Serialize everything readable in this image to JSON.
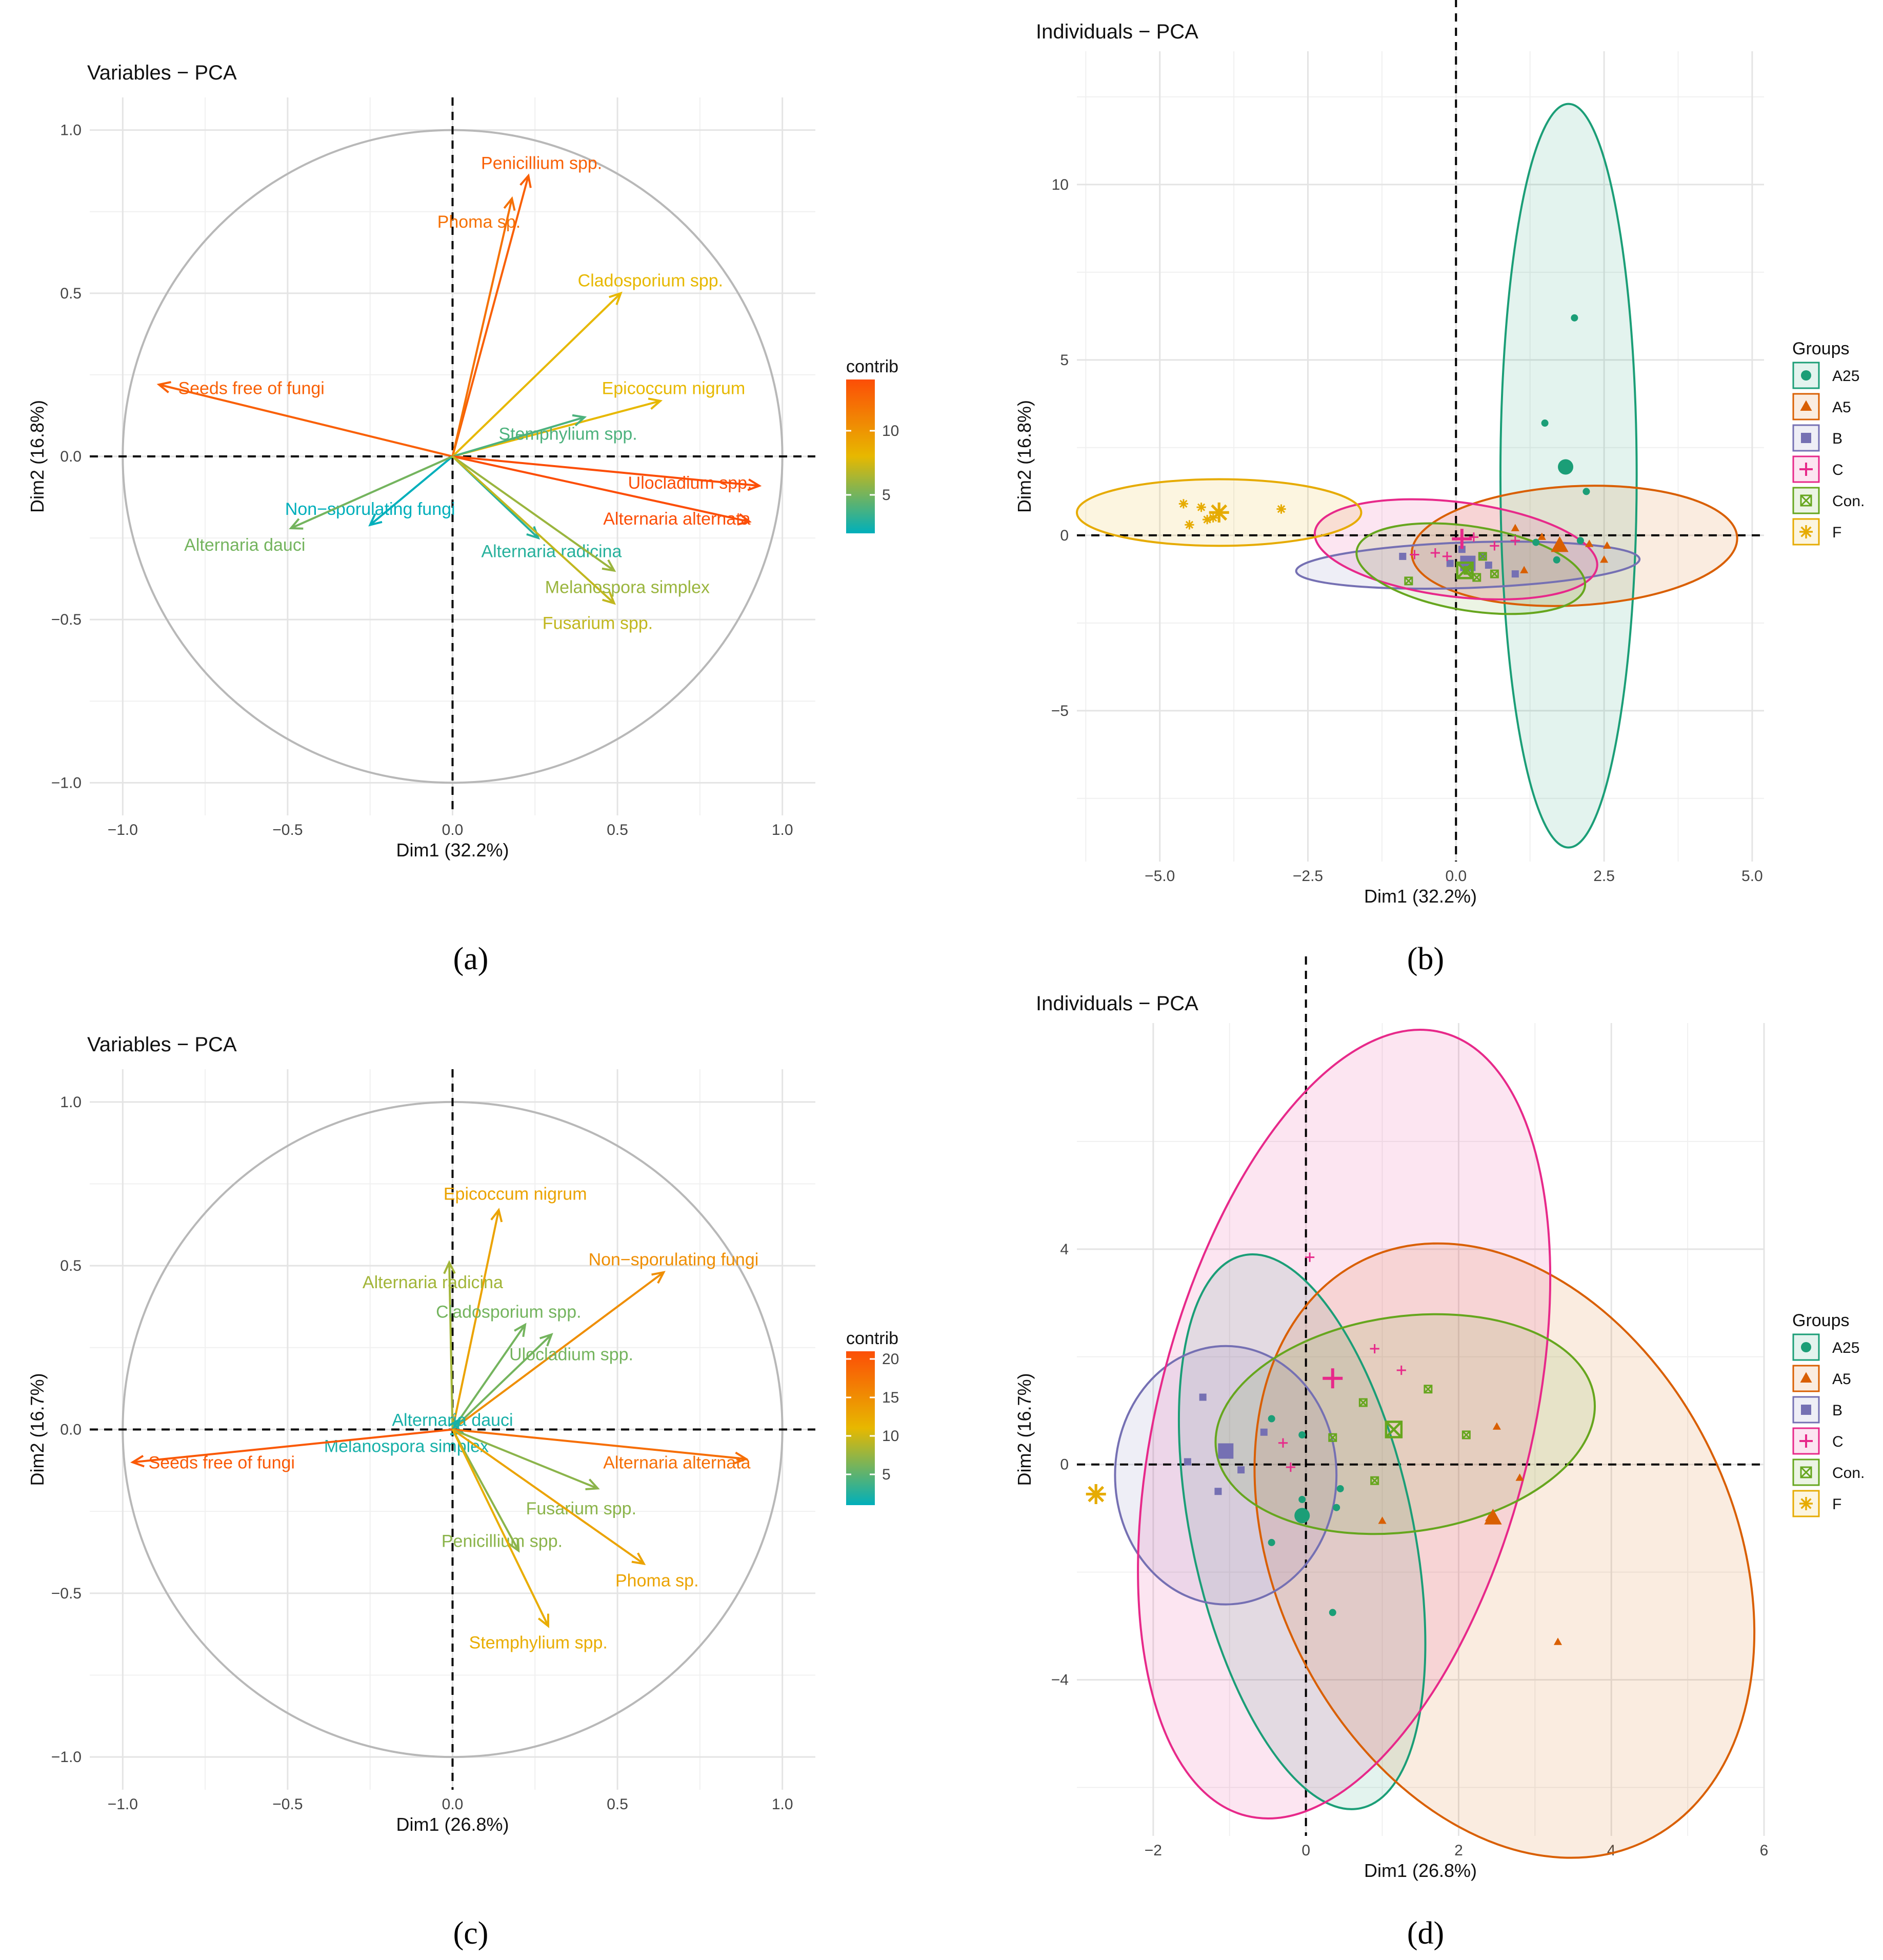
{
  "figure": {
    "panel_labels": [
      "(a)",
      "(b)",
      "(c)",
      "(d)"
    ]
  },
  "chart_data": [
    {
      "panel": "(a)",
      "type": "pca-variables",
      "title": "Variables − PCA",
      "xlabel": "Dim1 (32.2%)",
      "ylabel": "Dim2 (16.8%)",
      "xlim": [
        -1.1,
        1.1
      ],
      "ylim": [
        -1.1,
        1.1
      ],
      "xticks": [
        -1.0,
        -0.5,
        0.0,
        0.5,
        1.0
      ],
      "yticks": [
        -1.0,
        -0.5,
        0.0,
        0.5,
        1.0
      ],
      "xtick_labels": [
        "−1.0",
        "−0.5",
        "0.0",
        "0.5",
        "1.0"
      ],
      "ytick_labels": [
        "−1.0",
        "−0.5",
        "0.0",
        "0.5",
        "1.0"
      ],
      "legend": {
        "title": "contrib",
        "ticks": [
          5,
          10
        ],
        "range": [
          2,
          14
        ],
        "colors": [
          "#00AFBB",
          "#E7B800",
          "#FC4E07"
        ]
      },
      "arrows": [
        {
          "name": "Penicillium spp.",
          "x": 0.23,
          "y": 0.86,
          "contrib": 13,
          "lx": 0.27,
          "ly": 0.9,
          "anchor": "middle"
        },
        {
          "name": "Phoma sp.",
          "x": 0.18,
          "y": 0.79,
          "contrib": 12,
          "lx": 0.08,
          "ly": 0.72,
          "anchor": "middle"
        },
        {
          "name": "Cladosporium spp.",
          "x": 0.51,
          "y": 0.5,
          "contrib": 8,
          "lx": 0.6,
          "ly": 0.54,
          "anchor": "middle"
        },
        {
          "name": "Epicoccum nigrum",
          "x": 0.63,
          "y": 0.17,
          "contrib": 8,
          "lx": 0.67,
          "ly": 0.21,
          "anchor": "middle"
        },
        {
          "name": "Stemphylium spp.",
          "x": 0.4,
          "y": 0.12,
          "contrib": 4,
          "lx": 0.35,
          "ly": 0.07,
          "anchor": "middle"
        },
        {
          "name": "Seeds free of fungi",
          "x": -0.89,
          "y": 0.22,
          "contrib": 13,
          "lx": -0.61,
          "ly": 0.21,
          "anchor": "middle"
        },
        {
          "name": "Ulocladium spp.",
          "x": 0.93,
          "y": -0.09,
          "contrib": 14,
          "lx": 0.72,
          "ly": -0.08,
          "anchor": "middle"
        },
        {
          "name": "Alternaria alternata",
          "x": 0.9,
          "y": -0.2,
          "contrib": 14,
          "lx": 0.68,
          "ly": -0.19,
          "anchor": "middle"
        },
        {
          "name": "Non−sporulating fungi",
          "x": -0.25,
          "y": -0.21,
          "contrib": 2,
          "lx": -0.25,
          "ly": -0.16,
          "anchor": "middle"
        },
        {
          "name": "Alternaria dauci",
          "x": -0.49,
          "y": -0.22,
          "contrib": 5,
          "lx": -0.63,
          "ly": -0.27,
          "anchor": "middle"
        },
        {
          "name": "Alternaria radicina",
          "x": 0.26,
          "y": -0.25,
          "contrib": 3,
          "lx": 0.3,
          "ly": -0.29,
          "anchor": "middle"
        },
        {
          "name": "Melanospora simplex",
          "x": 0.49,
          "y": -0.35,
          "contrib": 6,
          "lx": 0.53,
          "ly": -0.4,
          "anchor": "middle"
        },
        {
          "name": "Fusarium spp.",
          "x": 0.49,
          "y": -0.45,
          "contrib": 7,
          "lx": 0.44,
          "ly": -0.51,
          "anchor": "middle"
        }
      ]
    },
    {
      "panel": "(b)",
      "type": "pca-individuals",
      "title": "Individuals − PCA",
      "xlabel": "Dim1 (32.2%)",
      "ylabel": "Dim2 (16.8%)",
      "xlim": [
        -6.4,
        5.2
      ],
      "ylim": [
        -9.3,
        13.8
      ],
      "xticks": [
        -5.0,
        -2.5,
        0.0,
        2.5,
        5.0
      ],
      "yticks": [
        -5,
        0,
        5,
        10
      ],
      "xtick_labels": [
        "−5.0",
        "−2.5",
        "0.0",
        "2.5",
        "5.0"
      ],
      "ytick_labels": [
        "−5",
        "0",
        "5",
        "10"
      ],
      "legend": {
        "title": "Groups",
        "names": [
          "A25",
          "A5",
          "B",
          "C",
          "Con.",
          "F"
        ]
      },
      "groups": [
        {
          "name": "A25",
          "color": "#1B9E77",
          "shape": "circle",
          "ellipse": {
            "cx": 1.9,
            "cy": 1.7,
            "rx": 1.15,
            "ry": 10.6,
            "angle": 0
          },
          "centroid": [
            1.85,
            1.95
          ],
          "points": [
            [
              2.0,
              6.2
            ],
            [
              1.5,
              3.2
            ],
            [
              2.2,
              1.25
            ],
            [
              1.7,
              -0.7
            ],
            [
              2.1,
              -0.15
            ],
            [
              1.35,
              -0.2
            ]
          ]
        },
        {
          "name": "A5",
          "color": "#D95F02",
          "shape": "triangle",
          "ellipse": {
            "cx": 2.0,
            "cy": -0.3,
            "rx": 2.75,
            "ry": 1.7,
            "angle": -3
          },
          "centroid": [
            1.75,
            -0.3
          ],
          "points": [
            [
              1.0,
              0.2
            ],
            [
              1.45,
              -0.05
            ],
            [
              1.15,
              -1.0
            ],
            [
              2.5,
              -0.7
            ],
            [
              2.55,
              -0.3
            ],
            [
              2.25,
              -0.25
            ]
          ]
        },
        {
          "name": "B",
          "color": "#7570B3",
          "shape": "square",
          "ellipse": {
            "cx": 0.2,
            "cy": -0.85,
            "rx": 2.9,
            "ry": 0.65,
            "angle": -2
          },
          "centroid": [
            0.2,
            -0.8
          ],
          "points": [
            [
              -0.9,
              -0.6
            ],
            [
              0.45,
              -0.6
            ],
            [
              0.55,
              -0.85
            ],
            [
              1.0,
              -1.1
            ],
            [
              -0.1,
              -0.8
            ],
            [
              0.1,
              -0.4
            ]
          ]
        },
        {
          "name": "C",
          "color": "#E7298A",
          "shape": "plus",
          "ellipse": {
            "cx": 0.0,
            "cy": -0.4,
            "rx": 2.4,
            "ry": 1.35,
            "angle": 7
          },
          "centroid": [
            0.1,
            -0.1
          ],
          "points": [
            [
              -0.7,
              -0.55
            ],
            [
              -0.35,
              -0.5
            ],
            [
              0.3,
              -0.05
            ],
            [
              0.65,
              -0.3
            ],
            [
              1.0,
              -0.15
            ],
            [
              -0.15,
              -0.6
            ]
          ]
        },
        {
          "name": "Con.",
          "color": "#66A61E",
          "shape": "boxx",
          "ellipse": {
            "cx": 0.25,
            "cy": -0.95,
            "rx": 1.95,
            "ry": 1.2,
            "angle": 9
          },
          "centroid": [
            0.15,
            -1.0
          ],
          "points": [
            [
              -0.8,
              -1.3
            ],
            [
              0.2,
              -1.0
            ],
            [
              0.45,
              -0.6
            ],
            [
              0.65,
              -1.1
            ],
            [
              0.35,
              -1.2
            ]
          ]
        },
        {
          "name": "F",
          "color": "#E6AB02",
          "shape": "star",
          "ellipse": {
            "cx": -4.0,
            "cy": 0.65,
            "rx": 2.4,
            "ry": 0.95,
            "angle": 0
          },
          "centroid": [
            -4.0,
            0.65
          ],
          "points": [
            [
              -4.6,
              0.9
            ],
            [
              -4.3,
              0.8
            ],
            [
              -4.5,
              0.3
            ],
            [
              -4.1,
              0.5
            ],
            [
              -2.95,
              0.75
            ],
            [
              -4.2,
              0.45
            ]
          ]
        }
      ]
    },
    {
      "panel": "(c)",
      "type": "pca-variables",
      "title": "Variables − PCA",
      "xlabel": "Dim1 (26.8%)",
      "ylabel": "Dim2 (16.7%)",
      "xlim": [
        -1.1,
        1.1
      ],
      "ylim": [
        -1.1,
        1.1
      ],
      "xticks": [
        -1.0,
        -0.5,
        0.0,
        0.5,
        1.0
      ],
      "yticks": [
        -1.0,
        -0.5,
        0.0,
        0.5,
        1.0
      ],
      "xtick_labels": [
        "−1.0",
        "−0.5",
        "0.0",
        "0.5",
        "1.0"
      ],
      "ytick_labels": [
        "−1.0",
        "−0.5",
        "0.0",
        "0.5",
        "1.0"
      ],
      "legend": {
        "title": "contrib",
        "ticks": [
          5,
          10,
          15,
          20
        ],
        "range": [
          1,
          21
        ],
        "colors": [
          "#00AFBB",
          "#E7B800",
          "#FC4E07"
        ]
      },
      "arrows": [
        {
          "name": "Epicoccum nigrum",
          "x": 0.14,
          "y": 0.67,
          "contrib": 13,
          "lx": 0.19,
          "ly": 0.72,
          "anchor": "middle"
        },
        {
          "name": "Non−sporulating fungi",
          "x": 0.64,
          "y": 0.48,
          "contrib": 15,
          "lx": 0.67,
          "ly": 0.52,
          "anchor": "middle"
        },
        {
          "name": "Alternaria radicina",
          "x": -0.01,
          "y": 0.51,
          "contrib": 8,
          "lx": -0.06,
          "ly": 0.45,
          "anchor": "middle"
        },
        {
          "name": "Cladosporium spp.",
          "x": 0.22,
          "y": 0.32,
          "contrib": 6,
          "lx": 0.17,
          "ly": 0.36,
          "anchor": "middle"
        },
        {
          "name": "Ulocladium spp.",
          "x": 0.3,
          "y": 0.29,
          "contrib": 6,
          "lx": 0.36,
          "ly": 0.23,
          "anchor": "middle"
        },
        {
          "name": "Alternaria dauci",
          "x": 0.02,
          "y": 0.03,
          "contrib": 2,
          "lx": 0.0,
          "ly": 0.03,
          "anchor": "middle"
        },
        {
          "name": "Melanospora simplex",
          "x": 0.03,
          "y": -0.01,
          "contrib": 2,
          "lx": -0.14,
          "ly": -0.05,
          "anchor": "middle"
        },
        {
          "name": "Seeds free of fungi",
          "x": -0.97,
          "y": -0.1,
          "contrib": 20,
          "lx": -0.7,
          "ly": -0.1,
          "anchor": "middle"
        },
        {
          "name": "Alternaria alternata",
          "x": 0.89,
          "y": -0.09,
          "contrib": 18,
          "lx": 0.68,
          "ly": -0.1,
          "anchor": "middle"
        },
        {
          "name": "Fusarium spp.",
          "x": 0.44,
          "y": -0.18,
          "contrib": 7,
          "lx": 0.39,
          "ly": -0.24,
          "anchor": "middle"
        },
        {
          "name": "Penicillium spp.",
          "x": 0.2,
          "y": -0.37,
          "contrib": 7,
          "lx": 0.15,
          "ly": -0.34,
          "anchor": "middle"
        },
        {
          "name": "Phoma sp.",
          "x": 0.58,
          "y": -0.41,
          "contrib": 13,
          "lx": 0.62,
          "ly": -0.46,
          "anchor": "middle"
        },
        {
          "name": "Stemphylium spp.",
          "x": 0.29,
          "y": -0.6,
          "contrib": 12,
          "lx": 0.26,
          "ly": -0.65,
          "anchor": "middle"
        }
      ]
    },
    {
      "panel": "(d)",
      "type": "pca-individuals",
      "title": "Individuals − PCA",
      "xlabel": "Dim1 (26.8%)",
      "ylabel": "Dim2 (16.7%)",
      "xlim": [
        -3.0,
        6.0
      ],
      "ylim": [
        -6.9,
        8.2
      ],
      "xticks": [
        -2,
        0,
        2,
        4,
        6
      ],
      "yticks": [
        -4,
        0,
        4
      ],
      "xtick_labels": [
        "−2",
        "0",
        "2",
        "4",
        "6"
      ],
      "ytick_labels": [
        "−4",
        "0",
        "4"
      ],
      "legend": {
        "title": "Groups",
        "names": [
          "A25",
          "A5",
          "B",
          "C",
          "Con.",
          "F"
        ]
      },
      "groups": [
        {
          "name": "A25",
          "color": "#1B9E77",
          "shape": "circle",
          "ellipse": {
            "cx": -0.05,
            "cy": -1.25,
            "rx": 1.45,
            "ry": 5.25,
            "angle": -12
          },
          "centroid": [
            -0.05,
            -0.95
          ],
          "points": [
            [
              -0.45,
              0.85
            ],
            [
              -0.05,
              0.55
            ],
            [
              0.45,
              -0.45
            ],
            [
              -0.05,
              -0.65
            ],
            [
              0.4,
              -0.8
            ],
            [
              0.35,
              -2.75
            ],
            [
              -0.45,
              -1.45
            ]
          ]
        },
        {
          "name": "A5",
          "color": "#D95F02",
          "shape": "triangle",
          "ellipse": {
            "cx": 2.6,
            "cy": -1.6,
            "rx": 3.0,
            "ry": 6.0,
            "angle": -26
          },
          "centroid": [
            2.45,
            -1.0
          ],
          "points": [
            [
              2.5,
              0.7
            ],
            [
              2.8,
              -0.25
            ],
            [
              1.0,
              -1.05
            ],
            [
              3.3,
              -3.3
            ],
            [
              2.4,
              -1.0
            ]
          ]
        },
        {
          "name": "B",
          "color": "#7570B3",
          "shape": "square",
          "ellipse": {
            "cx": -1.05,
            "cy": -0.2,
            "rx": 1.45,
            "ry": 2.4,
            "angle": 0
          },
          "centroid": [
            -1.05,
            0.25
          ],
          "points": [
            [
              -1.35,
              1.25
            ],
            [
              -0.55,
              0.6
            ],
            [
              -1.55,
              0.05
            ],
            [
              -0.85,
              -0.1
            ],
            [
              -1.15,
              -0.5
            ]
          ]
        },
        {
          "name": "C",
          "color": "#E7298A",
          "shape": "plus",
          "ellipse": {
            "cx": 0.5,
            "cy": 0.75,
            "rx": 2.45,
            "ry": 7.5,
            "angle": 14
          },
          "centroid": [
            0.35,
            1.6
          ],
          "points": [
            [
              0.9,
              2.15
            ],
            [
              1.25,
              1.75
            ],
            [
              -0.3,
              0.4
            ],
            [
              -0.2,
              -0.05
            ],
            [
              0.05,
              3.85
            ]
          ]
        },
        {
          "name": "Con.",
          "color": "#66A61E",
          "shape": "boxx",
          "ellipse": {
            "cx": 1.3,
            "cy": 0.75,
            "rx": 2.5,
            "ry": 2.0,
            "angle": -8
          },
          "centroid": [
            1.15,
            0.65
          ],
          "points": [
            [
              0.75,
              1.15
            ],
            [
              1.6,
              1.4
            ],
            [
              2.1,
              0.55
            ],
            [
              0.35,
              0.5
            ],
            [
              0.9,
              -0.3
            ]
          ]
        },
        {
          "name": "F",
          "color": "#E6AB02",
          "shape": "star",
          "ellipse": null,
          "centroid": [
            -2.75,
            -0.55
          ],
          "points": []
        }
      ]
    }
  ]
}
